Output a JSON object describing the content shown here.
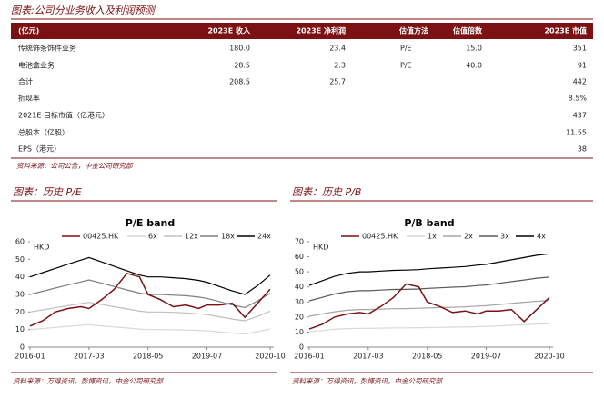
{
  "header": {
    "title": "图表:公司分业务收入及利润预测"
  },
  "table": {
    "columns": [
      "(亿元)",
      "2023E 收入",
      "2023E 净利润",
      "估值方法",
      "估值倍数",
      "2023E 市值"
    ],
    "rows": [
      [
        "传统饰条饰件业务",
        "180.0",
        "23.4",
        "P/E",
        "15.0",
        "351"
      ],
      [
        "电池盒业务",
        "28.5",
        "2.3",
        "P/E",
        "40.0",
        "91"
      ],
      [
        "合计",
        "208.5",
        "25.7",
        null,
        null,
        "442"
      ],
      [
        "折现率",
        null,
        null,
        null,
        null,
        "8.5%"
      ],
      [
        "2021E 目标市值（亿港元）",
        null,
        null,
        null,
        null,
        "437"
      ],
      [
        "总股本（亿股）",
        null,
        null,
        null,
        null,
        "11.55"
      ],
      [
        "EPS（港元）",
        null,
        null,
        null,
        null,
        "38"
      ]
    ],
    "source": "资料来源：公司公告，中金公司研究部"
  },
  "chart_data": [
    {
      "type": "line",
      "section_title": "图表：历史 P/E",
      "title": "P/E band",
      "y_unit": "HKD",
      "source": "资料来源：万得资讯，彭博资讯，中金公司研究部",
      "x": [
        "2016-01",
        "2016-04",
        "2016-07",
        "2016-10",
        "2017-01",
        "2017-03",
        "2017-06",
        "2017-09",
        "2017-12",
        "2018-03",
        "2018-05",
        "2018-08",
        "2018-11",
        "2019-02",
        "2019-05",
        "2019-07",
        "2019-10",
        "2020-01",
        "2020-04",
        "2020-07",
        "2020-10"
      ],
      "xlim": [
        "2016-01",
        "2020-10"
      ],
      "xticks": [
        "2016-01",
        "2017-03",
        "2018-05",
        "2019-07",
        "2020-10"
      ],
      "ylim": [
        0,
        60
      ],
      "yticks": [
        0,
        10,
        20,
        30,
        40,
        50,
        60
      ],
      "series": [
        {
          "name": "00425.HK",
          "color": "#7b1113",
          "values": [
            12,
            15,
            20,
            22,
            23,
            22,
            27,
            33,
            42,
            40,
            30,
            27,
            23,
            24,
            22,
            24,
            24,
            25,
            17,
            25,
            33
          ]
        },
        {
          "name": "6x",
          "color": "#d9d9d9",
          "values": [
            10,
            10.6,
            11.2,
            11.8,
            12.4,
            12.8,
            12.1,
            11.5,
            10.9,
            10.3,
            10,
            10,
            9.9,
            9.8,
            9.5,
            9.3,
            8.6,
            8,
            7.5,
            8.8,
            10.3
          ]
        },
        {
          "name": "12x",
          "color": "#bfbfbf",
          "values": [
            20,
            21.2,
            22.4,
            23.6,
            24.8,
            25.5,
            24.3,
            23,
            21.8,
            20.5,
            20,
            20,
            19.8,
            19.5,
            19,
            18.5,
            17.3,
            16,
            15,
            17.5,
            20.5
          ]
        },
        {
          "name": "18x",
          "color": "#7f7f7f",
          "values": [
            30,
            31.8,
            33.6,
            35.4,
            37.1,
            38.3,
            36.4,
            34.5,
            32.6,
            30.8,
            30,
            30,
            29.6,
            29.3,
            28.5,
            27.8,
            25.9,
            24,
            22.5,
            26.3,
            30.8
          ]
        },
        {
          "name": "24x",
          "color": "#000000",
          "values": [
            40,
            42.4,
            44.8,
            47.2,
            49.5,
            51,
            48.5,
            46,
            43.5,
            41,
            40,
            40,
            39.5,
            39,
            38,
            37,
            34.5,
            32,
            30,
            35,
            41
          ]
        }
      ]
    },
    {
      "type": "line",
      "section_title": "图表：历史 P/B",
      "title": "P/B band",
      "y_unit": "HKD",
      "source": "资料来源：万得资讯，彭博资讯，中金公司研究部",
      "x": [
        "2016-01",
        "2016-04",
        "2016-07",
        "2016-10",
        "2017-01",
        "2017-03",
        "2017-06",
        "2017-09",
        "2017-12",
        "2018-03",
        "2018-05",
        "2018-08",
        "2018-11",
        "2019-02",
        "2019-05",
        "2019-07",
        "2019-10",
        "2020-01",
        "2020-04",
        "2020-07",
        "2020-10"
      ],
      "xlim": [
        "2016-01",
        "2020-10"
      ],
      "xticks": [
        "2016-01",
        "2017-03",
        "2018-05",
        "2019-07",
        "2020-10"
      ],
      "ylim": [
        0,
        70
      ],
      "yticks": [
        0,
        10,
        20,
        30,
        40,
        50,
        60,
        70
      ],
      "series": [
        {
          "name": "00425.HK",
          "color": "#7b1113",
          "values": [
            12,
            15,
            20,
            22,
            23,
            22,
            27,
            33,
            42,
            40,
            30,
            27,
            23,
            24,
            22,
            24,
            24,
            25,
            17,
            25,
            33
          ]
        },
        {
          "name": "1x",
          "color": "#d9d9d9",
          "values": [
            10.3,
            11,
            11.8,
            12.3,
            12.5,
            12.5,
            12.6,
            12.8,
            12.8,
            12.9,
            13,
            13.1,
            13.3,
            13.4,
            13.6,
            13.8,
            14.1,
            14.5,
            14.9,
            15.3,
            15.5
          ]
        },
        {
          "name": "2x",
          "color": "#a6a6a6",
          "values": [
            20.5,
            22,
            23.5,
            24.5,
            25,
            25,
            25.3,
            25.5,
            25.6,
            25.8,
            26,
            26.3,
            26.5,
            26.8,
            27.3,
            27.5,
            28.3,
            29,
            29.8,
            30.5,
            31
          ]
        },
        {
          "name": "3x",
          "color": "#595959",
          "values": [
            30.8,
            33,
            35.3,
            36.8,
            37.5,
            37.5,
            37.9,
            38.3,
            38.4,
            38.6,
            39,
            39.4,
            39.8,
            40.1,
            40.9,
            41.3,
            42.4,
            43.5,
            44.6,
            45.8,
            46.5
          ]
        },
        {
          "name": "4x",
          "color": "#000000",
          "values": [
            41,
            44,
            47,
            49,
            50,
            50,
            50.5,
            51,
            51.2,
            51.5,
            52,
            52.5,
            53,
            53.5,
            54.5,
            55,
            56.5,
            58,
            59.5,
            61,
            62
          ]
        }
      ]
    }
  ]
}
